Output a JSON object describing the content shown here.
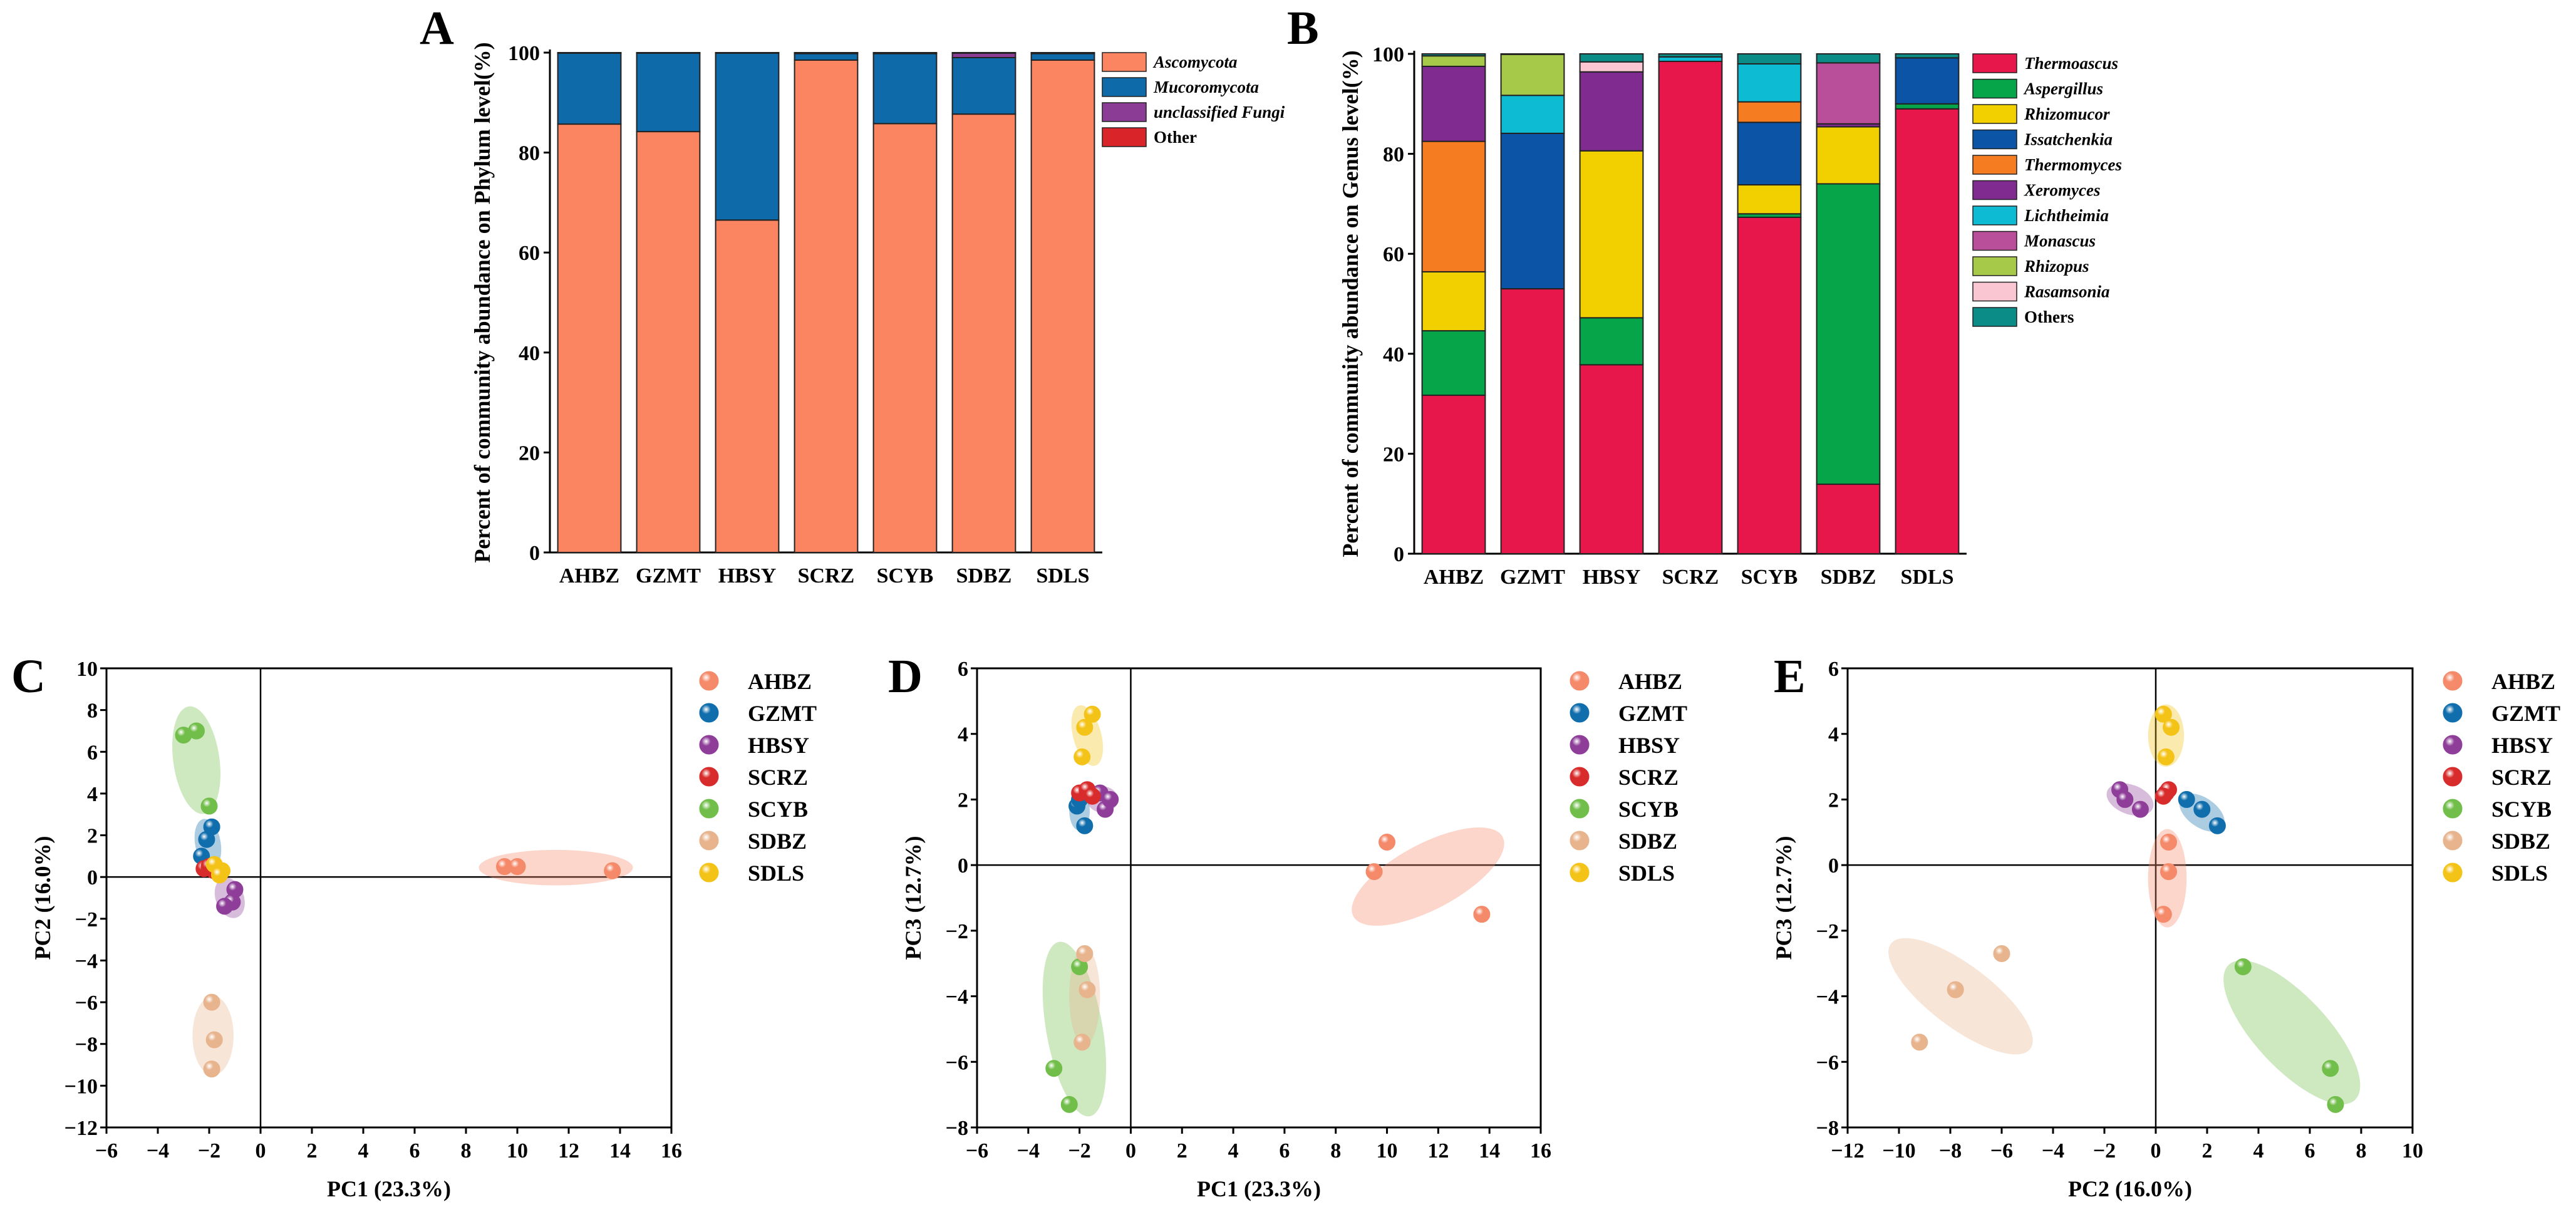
{
  "chart_data": [
    {
      "panel": "A",
      "type": "bar",
      "stacked": true,
      "ylabel": "Percent of community abundance on Phylum level(%)",
      "ylim": [
        0,
        100
      ],
      "yticks": [
        0,
        20,
        40,
        60,
        80,
        100
      ],
      "categories": [
        "AHBZ",
        "GZMT",
        "HBSY",
        "SCRZ",
        "SCYB",
        "SDBZ",
        "SDLS"
      ],
      "series": [
        {
          "name": "Ascomycota",
          "color": "#FA8560",
          "values": [
            85.7,
            84.2,
            66.5,
            98.5,
            85.8,
            87.7,
            98.5
          ]
        },
        {
          "name": "Mucoromycota",
          "color": "#0E6AA8",
          "values": [
            14.2,
            15.7,
            33.4,
            1.3,
            14.0,
            11.3,
            1.3
          ]
        },
        {
          "name": "unclassified Fungi",
          "color": "#8B3D96",
          "values": [
            0.05,
            0.05,
            0.05,
            0.1,
            0.1,
            0.9,
            0.1
          ]
        },
        {
          "name": "Other",
          "color": "#D9252A",
          "values": [
            0.05,
            0.05,
            0.05,
            0.1,
            0.1,
            0.1,
            0.1
          ]
        }
      ],
      "legend": "right"
    },
    {
      "panel": "B",
      "type": "bar",
      "stacked": true,
      "ylabel": "Percent of community abundance on Genus level(%)",
      "ylim": [
        0,
        100
      ],
      "yticks": [
        0,
        20,
        40,
        60,
        80,
        100
      ],
      "categories": [
        "AHBZ",
        "GZMT",
        "HBSY",
        "SCRZ",
        "SCYB",
        "SDBZ",
        "SDLS"
      ],
      "series": [
        {
          "name": "Thermoascus",
          "color": "#E8174B",
          "values": [
            31.7,
            53.0,
            37.8,
            98.5,
            67.3,
            13.9,
            89.0
          ]
        },
        {
          "name": "Aspergillus",
          "color": "#07A54A",
          "values": [
            12.9,
            0,
            9.4,
            0,
            0.7,
            60.1,
            1.0
          ]
        },
        {
          "name": "Rhizomucor",
          "color": "#F2D000",
          "values": [
            11.8,
            0,
            33.4,
            0,
            5.8,
            11.4,
            0
          ]
        },
        {
          "name": "Issatchenkia",
          "color": "#0B54A6",
          "values": [
            0,
            31.1,
            0,
            0,
            12.5,
            0,
            9.2
          ]
        },
        {
          "name": "Thermomyces",
          "color": "#F57C20",
          "values": [
            26.1,
            0,
            0,
            0,
            4.1,
            0,
            0
          ]
        },
        {
          "name": "Xeromyces",
          "color": "#7F2B8F",
          "values": [
            15.0,
            0,
            15.8,
            0,
            0,
            0.6,
            0
          ]
        },
        {
          "name": "Lichtheimia",
          "color": "#0DBCD3",
          "values": [
            0,
            7.6,
            0,
            0.9,
            7.6,
            0,
            0
          ]
        },
        {
          "name": "Monascus",
          "color": "#B94E9A",
          "values": [
            0,
            0,
            0,
            0,
            0,
            12.2,
            0
          ]
        },
        {
          "name": "Rhizopus",
          "color": "#A6C94A",
          "values": [
            2.1,
            8.2,
            0,
            0,
            0,
            0,
            0
          ]
        },
        {
          "name": "Rasamsonia",
          "color": "#F9C6D2",
          "values": [
            0,
            0,
            2.0,
            0,
            0,
            0,
            0
          ]
        },
        {
          "name": "Others",
          "color": "#0B8C87",
          "values": [
            0.4,
            0.1,
            1.6,
            0.6,
            2.0,
            1.8,
            0.8
          ]
        }
      ],
      "legend": "right"
    },
    {
      "panel": "C",
      "type": "scatter",
      "xlabel": "PC1 (23.3%)",
      "ylabel": "PC2 (16.0%)",
      "xlim": [
        -6,
        16
      ],
      "xticks": [
        -6,
        -4,
        -2,
        0,
        2,
        4,
        6,
        8,
        10,
        12,
        14,
        16
      ],
      "ylim": [
        -12,
        10
      ],
      "yticks": [
        -12,
        -10,
        -8,
        -6,
        -4,
        -2,
        0,
        2,
        4,
        6,
        8,
        10
      ],
      "series": [
        {
          "name": "AHBZ",
          "color": "#F58A6B",
          "points": [
            [
              9.5,
              0.5
            ],
            [
              10.0,
              0.5
            ],
            [
              13.7,
              0.3
            ]
          ]
        },
        {
          "name": "GZMT",
          "color": "#116EAD",
          "points": [
            [
              -1.9,
              2.4
            ],
            [
              -2.1,
              1.8
            ],
            [
              -2.3,
              1.0
            ]
          ]
        },
        {
          "name": "HBSY",
          "color": "#8E3E99",
          "points": [
            [
              -1.0,
              -0.6
            ],
            [
              -1.1,
              -1.2
            ],
            [
              -1.4,
              -1.4
            ]
          ]
        },
        {
          "name": "SCRZ",
          "color": "#D82C2C",
          "points": [
            [
              -2.2,
              0.4
            ],
            [
              -2.0,
              0.5
            ],
            [
              -1.8,
              0.3
            ]
          ]
        },
        {
          "name": "SCYB",
          "color": "#72BE4B",
          "points": [
            [
              -3.0,
              6.8
            ],
            [
              -2.5,
              7.0
            ],
            [
              -2.0,
              3.4
            ]
          ]
        },
        {
          "name": "SDBZ",
          "color": "#E7B48E",
          "points": [
            [
              -1.9,
              -6.0
            ],
            [
              -1.8,
              -7.8
            ],
            [
              -1.9,
              -9.2
            ]
          ]
        },
        {
          "name": "SDLS",
          "color": "#F4C318",
          "points": [
            [
              -1.5,
              0.3
            ],
            [
              -1.8,
              0.6
            ],
            [
              -1.6,
              0.1
            ]
          ]
        }
      ],
      "ellipses": [
        {
          "group": "AHBZ",
          "cx": 11.5,
          "cy": 0.45,
          "rx": 3.0,
          "ry": 0.85,
          "angle": 0
        },
        {
          "group": "SCYB",
          "cx": -2.5,
          "cy": 5.6,
          "rx": 0.9,
          "ry": 2.6,
          "angle": 8
        },
        {
          "group": "SDBZ",
          "cx": -1.85,
          "cy": -7.6,
          "rx": 0.8,
          "ry": 1.9,
          "angle": 0
        },
        {
          "group": "HBSY",
          "cx": -1.2,
          "cy": -1.0,
          "rx": 0.55,
          "ry": 1.0,
          "angle": 20
        },
        {
          "group": "GZMT",
          "cx": -2.05,
          "cy": 1.6,
          "rx": 0.5,
          "ry": 1.2,
          "angle": 10
        }
      ],
      "legend": "right"
    },
    {
      "panel": "D",
      "type": "scatter",
      "xlabel": "PC1 (23.3%)",
      "ylabel": "PC3 (12.7%)",
      "xlim": [
        -6,
        16
      ],
      "xticks": [
        -6,
        -4,
        -2,
        0,
        2,
        4,
        6,
        8,
        10,
        12,
        14,
        16
      ],
      "ylim": [
        -8,
        6
      ],
      "yticks": [
        -8,
        -6,
        -4,
        -2,
        0,
        2,
        4,
        6
      ],
      "series": [
        {
          "name": "AHBZ",
          "color": "#F58A6B",
          "points": [
            [
              10.0,
              0.7
            ],
            [
              9.5,
              -0.2
            ],
            [
              13.7,
              -1.5
            ]
          ]
        },
        {
          "name": "GZMT",
          "color": "#116EAD",
          "points": [
            [
              -2.1,
              1.8
            ],
            [
              -1.8,
              1.2
            ],
            [
              -2.0,
              2.0
            ]
          ]
        },
        {
          "name": "HBSY",
          "color": "#8E3E99",
          "points": [
            [
              -1.2,
              2.2
            ],
            [
              -1.0,
              1.7
            ],
            [
              -0.8,
              2.0
            ]
          ]
        },
        {
          "name": "SCRZ",
          "color": "#D82C2C",
          "points": [
            [
              -2.0,
              2.2
            ],
            [
              -1.7,
              2.3
            ],
            [
              -1.5,
              2.1
            ]
          ]
        },
        {
          "name": "SCYB",
          "color": "#72BE4B",
          "points": [
            [
              -3.0,
              -6.2
            ],
            [
              -2.4,
              -7.3
            ],
            [
              -2.0,
              -3.1
            ]
          ]
        },
        {
          "name": "SDBZ",
          "color": "#E7B48E",
          "points": [
            [
              -1.8,
              -2.7
            ],
            [
              -1.7,
              -3.8
            ],
            [
              -1.9,
              -5.4
            ]
          ]
        },
        {
          "name": "SDLS",
          "color": "#F4C318",
          "points": [
            [
              -1.5,
              4.6
            ],
            [
              -1.8,
              4.2
            ],
            [
              -1.9,
              3.3
            ]
          ]
        }
      ],
      "ellipses": [
        {
          "group": "AHBZ",
          "cx": 11.6,
          "cy": -0.35,
          "rx": 3.3,
          "ry": 1.0,
          "angle": 28
        },
        {
          "group": "SCYB",
          "cx": -2.2,
          "cy": -5.0,
          "rx": 1.1,
          "ry": 2.7,
          "angle": 10
        },
        {
          "group": "SDBZ",
          "cx": -1.8,
          "cy": -4.0,
          "rx": 0.6,
          "ry": 1.5,
          "angle": 0
        },
        {
          "group": "SDLS",
          "cx": -1.7,
          "cy": 3.95,
          "rx": 0.55,
          "ry": 0.95,
          "angle": 15
        },
        {
          "group": "HBSY",
          "cx": -1.1,
          "cy": 2.0,
          "rx": 0.6,
          "ry": 0.4,
          "angle": 0
        },
        {
          "group": "GZMT",
          "cx": -2.0,
          "cy": 1.65,
          "rx": 0.4,
          "ry": 0.6,
          "angle": 0
        }
      ],
      "legend": "right"
    },
    {
      "panel": "E",
      "type": "scatter",
      "xlabel": "PC2 (16.0%)",
      "ylabel": "PC3 (12.7%)",
      "xlim": [
        -12,
        10
      ],
      "xticks": [
        -12,
        -10,
        -8,
        -6,
        -4,
        -2,
        0,
        2,
        4,
        6,
        8,
        10
      ],
      "ylim": [
        -8,
        6
      ],
      "yticks": [
        -8,
        -6,
        -4,
        -2,
        0,
        2,
        4,
        6
      ],
      "series": [
        {
          "name": "AHBZ",
          "color": "#F58A6B",
          "points": [
            [
              0.5,
              0.7
            ],
            [
              0.5,
              -0.2
            ],
            [
              0.3,
              -1.5
            ]
          ]
        },
        {
          "name": "GZMT",
          "color": "#116EAD",
          "points": [
            [
              1.2,
              2.0
            ],
            [
              1.8,
              1.7
            ],
            [
              2.4,
              1.2
            ]
          ]
        },
        {
          "name": "HBSY",
          "color": "#8E3E99",
          "points": [
            [
              -1.4,
              2.3
            ],
            [
              -1.2,
              2.0
            ],
            [
              -0.6,
              1.7
            ]
          ]
        },
        {
          "name": "SCRZ",
          "color": "#D82C2C",
          "points": [
            [
              0.4,
              2.2
            ],
            [
              0.5,
              2.3
            ],
            [
              0.3,
              2.1
            ]
          ]
        },
        {
          "name": "SCYB",
          "color": "#72BE4B",
          "points": [
            [
              3.4,
              -3.1
            ],
            [
              6.8,
              -6.2
            ],
            [
              7.0,
              -7.3
            ]
          ]
        },
        {
          "name": "SDBZ",
          "color": "#E7B48E",
          "points": [
            [
              -6.0,
              -2.7
            ],
            [
              -7.8,
              -3.8
            ],
            [
              -9.2,
              -5.4
            ]
          ]
        },
        {
          "name": "SDLS",
          "color": "#F4C318",
          "points": [
            [
              0.3,
              4.6
            ],
            [
              0.6,
              4.2
            ],
            [
              0.4,
              3.3
            ]
          ]
        }
      ],
      "ellipses": [
        {
          "group": "SDBZ",
          "cx": -7.6,
          "cy": -4.0,
          "rx": 3.4,
          "ry": 0.95,
          "angle": -37
        },
        {
          "group": "SCYB",
          "cx": 5.3,
          "cy": -5.1,
          "rx": 3.6,
          "ry": 1.1,
          "angle": -47
        },
        {
          "group": "AHBZ",
          "cx": 0.45,
          "cy": -0.4,
          "rx": 0.75,
          "ry": 1.5,
          "angle": 0
        },
        {
          "group": "SDLS",
          "cx": 0.4,
          "cy": 3.95,
          "rx": 0.7,
          "ry": 0.95,
          "angle": 0
        },
        {
          "group": "HBSY",
          "cx": -1.0,
          "cy": 2.0,
          "rx": 0.95,
          "ry": 0.45,
          "angle": -20
        },
        {
          "group": "GZMT",
          "cx": 1.8,
          "cy": 1.6,
          "rx": 1.0,
          "ry": 0.45,
          "angle": -35
        }
      ],
      "legend": "right"
    }
  ]
}
